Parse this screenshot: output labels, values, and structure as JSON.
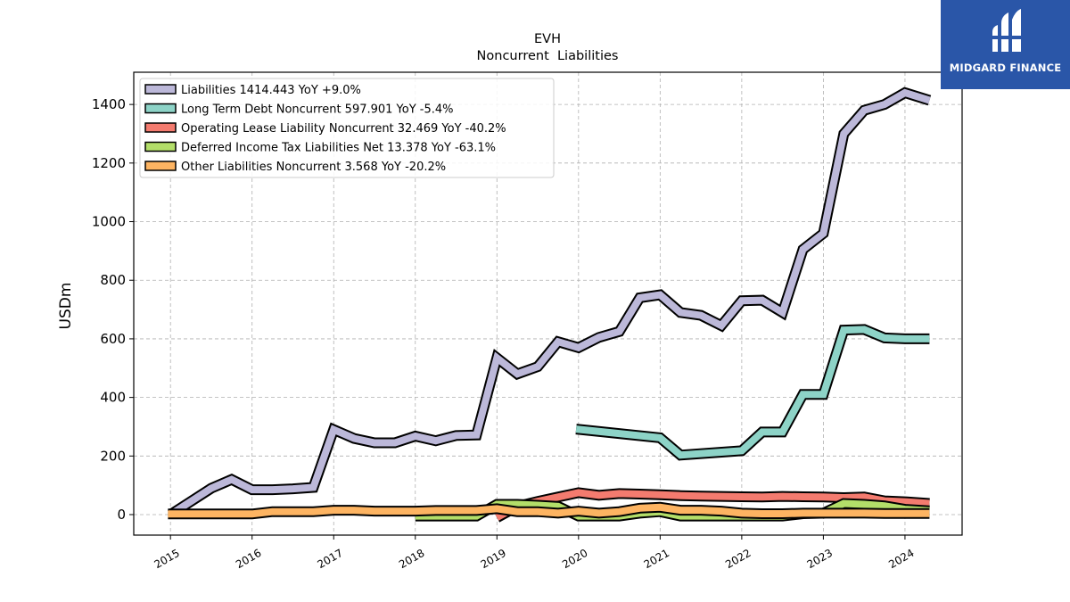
{
  "brand": {
    "name": "MIDGARD FINANCE",
    "color": "#2a56a8",
    "icon": "midgard-logo-icon"
  },
  "chart_data": {
    "type": "line",
    "title": "EVH",
    "subtitle": "Noncurrent  Liabilities",
    "xlabel": "",
    "ylabel": "USDm",
    "xlim": [
      2014.55,
      2024.7
    ],
    "ylim": [
      -70,
      1510
    ],
    "yticks": [
      0,
      200,
      400,
      600,
      800,
      1000,
      1200,
      1400
    ],
    "xticks": [
      2015,
      2016,
      2017,
      2018,
      2019,
      2020,
      2021,
      2022,
      2023,
      2024
    ],
    "xtick_labels": [
      "2015",
      "2016",
      "2017",
      "2018",
      "2019",
      "2020",
      "2021",
      "2022",
      "2023",
      "2024"
    ],
    "grid": true,
    "legend_position": "top-left",
    "series": [
      {
        "name": "Liabilities  1414.443 YoY +9.0%",
        "color": "#bcb8d9",
        "points": [
          [
            2015.0,
            0
          ],
          [
            2015.5,
            90
          ],
          [
            2015.75,
            120
          ],
          [
            2016.0,
            85
          ],
          [
            2016.25,
            85
          ],
          [
            2016.5,
            88
          ],
          [
            2016.75,
            93
          ],
          [
            2017.0,
            290
          ],
          [
            2017.25,
            260
          ],
          [
            2017.5,
            245
          ],
          [
            2017.75,
            245
          ],
          [
            2018.0,
            268
          ],
          [
            2018.25,
            252
          ],
          [
            2018.5,
            270
          ],
          [
            2018.75,
            272
          ],
          [
            2019.0,
            535
          ],
          [
            2019.25,
            480
          ],
          [
            2019.5,
            505
          ],
          [
            2019.75,
            590
          ],
          [
            2020.0,
            570
          ],
          [
            2020.25,
            605
          ],
          [
            2020.5,
            625
          ],
          [
            2020.75,
            740
          ],
          [
            2021.0,
            750
          ],
          [
            2021.25,
            690
          ],
          [
            2021.5,
            680
          ],
          [
            2021.75,
            645
          ],
          [
            2022.0,
            730
          ],
          [
            2022.25,
            732
          ],
          [
            2022.5,
            690
          ],
          [
            2022.75,
            905
          ],
          [
            2023.0,
            960
          ],
          [
            2023.25,
            1300
          ],
          [
            2023.5,
            1380
          ],
          [
            2023.75,
            1400
          ],
          [
            2024.0,
            1440
          ],
          [
            2024.3,
            1414
          ]
        ]
      },
      {
        "name": "Long Term Debt Noncurrent  597.901 YoY -5.4%",
        "color": "#8dd3c7",
        "points": [
          [
            2019.97,
            292
          ],
          [
            2021.0,
            262
          ],
          [
            2021.25,
            203
          ],
          [
            2022.0,
            218
          ],
          [
            2022.25,
            282
          ],
          [
            2022.5,
            282
          ],
          [
            2022.75,
            410
          ],
          [
            2023.0,
            410
          ],
          [
            2023.25,
            630
          ],
          [
            2023.5,
            632
          ],
          [
            2023.75,
            603
          ],
          [
            2024.0,
            600
          ],
          [
            2024.3,
            600
          ]
        ]
      },
      {
        "name": "Operating Lease Liability Noncurrent  32.469 YoY -40.2%",
        "color": "#f47b6f",
        "points": [
          [
            2019.0,
            -10
          ],
          [
            2019.25,
            28
          ],
          [
            2019.5,
            45
          ],
          [
            2019.75,
            60
          ],
          [
            2020.0,
            75
          ],
          [
            2020.25,
            66
          ],
          [
            2020.5,
            72
          ],
          [
            2020.75,
            70
          ],
          [
            2021.0,
            68
          ],
          [
            2021.25,
            65
          ],
          [
            2021.5,
            63
          ],
          [
            2021.75,
            62
          ],
          [
            2022.0,
            61
          ],
          [
            2022.25,
            60
          ],
          [
            2022.5,
            62
          ],
          [
            2022.75,
            61
          ],
          [
            2023.0,
            60
          ],
          [
            2023.25,
            58
          ],
          [
            2023.5,
            60
          ],
          [
            2023.75,
            47
          ],
          [
            2024.0,
            44
          ],
          [
            2024.3,
            38
          ]
        ]
      },
      {
        "name": "Deferred Income Tax Liabilities Net  13.378 YoY -63.1%",
        "color": "#b3de69",
        "points": [
          [
            2018.0,
            -5
          ],
          [
            2018.75,
            -5
          ],
          [
            2019.0,
            35
          ],
          [
            2019.25,
            35
          ],
          [
            2019.5,
            32
          ],
          [
            2019.75,
            28
          ],
          [
            2020.0,
            -5
          ],
          [
            2020.25,
            -5
          ],
          [
            2020.5,
            -5
          ],
          [
            2020.75,
            5
          ],
          [
            2021.0,
            10
          ],
          [
            2021.25,
            -5
          ],
          [
            2022.5,
            -5
          ],
          [
            2022.75,
            3
          ],
          [
            2023.0,
            5
          ],
          [
            2023.25,
            38
          ],
          [
            2023.5,
            35
          ],
          [
            2023.75,
            30
          ],
          [
            2024.0,
            18
          ],
          [
            2024.3,
            13
          ]
        ]
      },
      {
        "name": "Other Liabilities Noncurrent  3.568 YoY -20.2%",
        "color": "#fdb462",
        "points": [
          [
            2014.97,
            2
          ],
          [
            2016.0,
            2
          ],
          [
            2016.25,
            10
          ],
          [
            2016.75,
            10
          ],
          [
            2017.0,
            15
          ],
          [
            2017.25,
            15
          ],
          [
            2017.5,
            12
          ],
          [
            2018.0,
            12
          ],
          [
            2018.25,
            14
          ],
          [
            2018.75,
            14
          ],
          [
            2019.0,
            20
          ],
          [
            2019.25,
            10
          ],
          [
            2019.5,
            10
          ],
          [
            2019.75,
            5
          ],
          [
            2020.0,
            12
          ],
          [
            2020.25,
            5
          ],
          [
            2020.5,
            10
          ],
          [
            2020.75,
            22
          ],
          [
            2021.0,
            25
          ],
          [
            2021.25,
            15
          ],
          [
            2021.5,
            15
          ],
          [
            2021.75,
            12
          ],
          [
            2022.0,
            5
          ],
          [
            2022.25,
            3
          ],
          [
            2022.5,
            3
          ],
          [
            2022.75,
            5
          ],
          [
            2023.0,
            5
          ],
          [
            2023.25,
            5
          ],
          [
            2023.5,
            5
          ],
          [
            2023.75,
            4
          ],
          [
            2024.0,
            4
          ],
          [
            2024.3,
            4
          ]
        ]
      }
    ]
  }
}
